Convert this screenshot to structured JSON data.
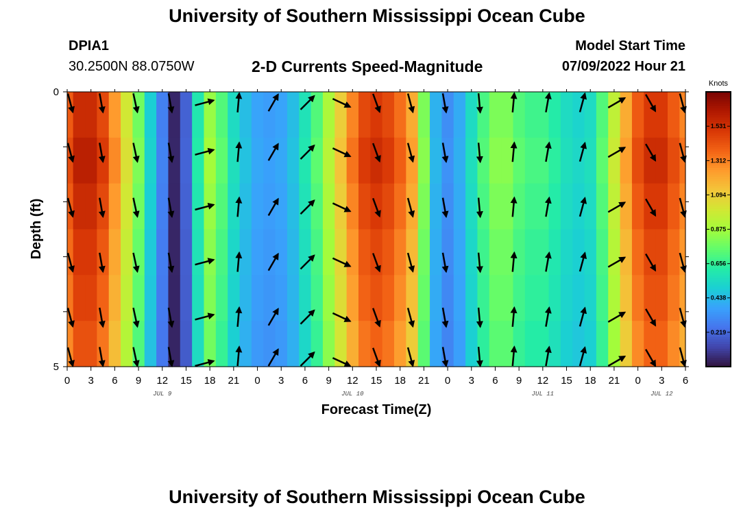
{
  "header": {
    "title": "University of Southern Mississippi Ocean Cube",
    "station_id": "DPIA1",
    "station_coords": "30.2500N  88.0750W",
    "model_start_label": "Model Start Time",
    "model_start_value": "07/09/2022 Hour 21"
  },
  "footer": {
    "title": "University of Southern Mississippi Ocean Cube"
  },
  "colors": {
    "colormap": [
      "#30123b",
      "#4145ab",
      "#4675ed",
      "#39a2fc",
      "#1bcfd4",
      "#24eca6",
      "#61fc6c",
      "#a4fc3b",
      "#d1e834",
      "#f3c63a",
      "#fe9b2d",
      "#f36315",
      "#d93806",
      "#b11901",
      "#7a0402"
    ],
    "arrow": "#000000"
  },
  "chart_data": {
    "type": "heatmap",
    "title": "2-D Currents Speed-Magnitude",
    "xlabel": "Forecast Time(Z)",
    "ylabel": "Depth (ft)",
    "x_tick_labels": [
      "0",
      "3",
      "6",
      "9",
      "12",
      "15",
      "18",
      "21",
      "0",
      "3",
      "6",
      "9",
      "12",
      "15",
      "18",
      "21",
      "0",
      "3",
      "6",
      "9",
      "12",
      "15",
      "18",
      "21",
      "0",
      "3",
      "6"
    ],
    "day_labels": [
      {
        "label": "JUL 9",
        "hour": 12
      },
      {
        "label": "JUL 10",
        "hour": 36
      },
      {
        "label": "JUL 11",
        "hour": 60
      },
      {
        "label": "JUL 12",
        "hour": 75
      }
    ],
    "xlim": [
      0,
      78
    ],
    "ylim": [
      0,
      5
    ],
    "y_tick_labels": [
      "0",
      "5"
    ],
    "colorbar": {
      "unit": "Knots",
      "ticks": [
        "0.219",
        "0.438",
        "0.656",
        "0.875",
        "1.094",
        "1.312",
        "1.531"
      ],
      "tick_values": [
        0.219,
        0.438,
        0.656,
        0.875,
        1.094,
        1.312,
        1.531
      ],
      "min": 0.0,
      "max": 1.75
    },
    "speed_hours": [
      0,
      1.5,
      3,
      4.5,
      6,
      7.5,
      9,
      10.5,
      12,
      13.5,
      15,
      16.5,
      18,
      19.5,
      21,
      22.5,
      24,
      25.5,
      27,
      28.5,
      30,
      31.5,
      33,
      34.5,
      36,
      37.5,
      39,
      40.5,
      42,
      43.5,
      45,
      46.5,
      48,
      49.5,
      51,
      52.5,
      54,
      55.5,
      57,
      58.5,
      60,
      61.5,
      63,
      64.5,
      66,
      67.5,
      69,
      70.5,
      72,
      73.5,
      75,
      76.5,
      78
    ],
    "speed_knots": [
      1.4,
      1.55,
      1.55,
      1.45,
      1.25,
      1.0,
      0.78,
      0.5,
      0.28,
      0.05,
      0.2,
      0.6,
      0.85,
      0.72,
      0.55,
      0.45,
      0.38,
      0.36,
      0.38,
      0.45,
      0.58,
      0.72,
      0.9,
      1.1,
      1.3,
      1.45,
      1.5,
      1.45,
      1.35,
      1.2,
      0.8,
      0.42,
      0.32,
      0.4,
      0.55,
      0.7,
      0.8,
      0.8,
      0.72,
      0.68,
      0.68,
      0.62,
      0.55,
      0.52,
      0.55,
      0.72,
      0.95,
      1.2,
      1.4,
      1.5,
      1.5,
      1.4,
      1.3
    ],
    "depth_factor": [
      1.0,
      1.03,
      1.0,
      0.97,
      0.95,
      0.92
    ],
    "vector_hours": [
      0,
      4.3,
      8.6,
      13,
      17.3,
      21.6,
      26,
      30.3,
      34.6,
      39,
      43.3,
      47.6,
      52,
      56.3,
      60.6,
      65,
      69.3,
      73.6,
      78
    ],
    "vector_depths": [
      0.2,
      1.1,
      2.1,
      3.1,
      4.1,
      5.0
    ],
    "vector_direction_deg": [
      165,
      170,
      168,
      170,
      75,
      5,
      30,
      45,
      115,
      160,
      165,
      170,
      175,
      5,
      10,
      15,
      60,
      150,
      165
    ]
  }
}
